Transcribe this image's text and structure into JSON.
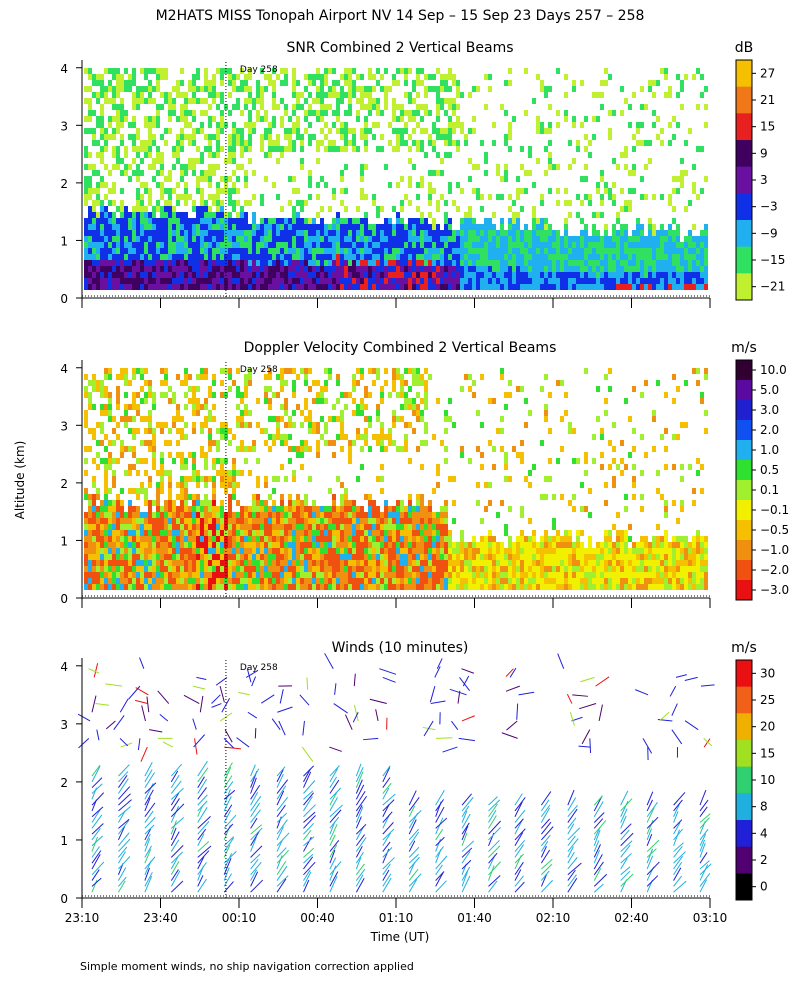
{
  "figure": {
    "title": "M2HATS MISS Tonopah Airport NV  14 Sep – 15 Sep 23 Days 257 – 258",
    "ylabel": "Altitude (km)",
    "xlabel": "Time (UT)",
    "footnote": "Simple moment winds, no ship navigation correction applied",
    "day_marker_label": "Day 258"
  },
  "chart_data": [
    {
      "type": "heatmap",
      "title": "SNR Combined 2 Vertical Beams",
      "xlabel": "Time (UT)",
      "ylabel": "Altitude (km)",
      "x_ticks": [
        "23:10",
        "23:40",
        "00:10",
        "00:40",
        "01:10",
        "01:40",
        "02:10",
        "02:40",
        "03:10"
      ],
      "y_ticks": [
        0,
        1,
        2,
        3,
        4
      ],
      "ylim": [
        0,
        4.1
      ],
      "colorbar_unit": "dB",
      "colorbar_labels": [
        "27",
        "21",
        "15",
        "9",
        "3",
        "−3",
        "−9",
        "−15",
        "−21"
      ],
      "colorbar_colors": [
        "#f5c000",
        "#f07818",
        "#e82020",
        "#400060",
        "#6a10a0",
        "#1030e8",
        "#20b0f0",
        "#30e060",
        "#c0f030"
      ],
      "day_marker_time": "00:05"
    },
    {
      "type": "heatmap",
      "title": "Doppler Velocity Combined 2 Vertical Beams",
      "xlabel": "Time (UT)",
      "ylabel": "Altitude (km)",
      "x_ticks": [
        "23:10",
        "23:40",
        "00:10",
        "00:40",
        "01:10",
        "01:40",
        "02:10",
        "02:40",
        "03:10"
      ],
      "y_ticks": [
        0,
        1,
        2,
        3,
        4
      ],
      "ylim": [
        0,
        4.1
      ],
      "colorbar_unit": "m/s",
      "colorbar_labels": [
        "10.0",
        "5.0",
        "3.0",
        "2.0",
        "1.0",
        "0.5",
        "0.1",
        "−0.1",
        "−0.5",
        "−1.0",
        "−2.0",
        "−3.0"
      ],
      "colorbar_colors": [
        "#300030",
        "#5a0aa0",
        "#2020d0",
        "#1050f0",
        "#20b0f0",
        "#30e030",
        "#a0f030",
        "#f0f000",
        "#f5c000",
        "#f09010",
        "#f05010",
        "#e81010"
      ],
      "day_marker_time": "00:05"
    },
    {
      "type": "scatter",
      "title": "Winds (10 minutes)",
      "xlabel": "Time (UT)",
      "ylabel": "Altitude (km)",
      "x_ticks": [
        "23:10",
        "23:40",
        "00:10",
        "00:40",
        "01:10",
        "01:40",
        "02:10",
        "02:40",
        "03:10"
      ],
      "y_ticks": [
        0,
        1,
        2,
        3,
        4
      ],
      "ylim": [
        0,
        4.1
      ],
      "colorbar_unit": "m/s",
      "colorbar_labels": [
        "30",
        "25",
        "20",
        "15",
        "10",
        "8",
        "4",
        "2",
        "0"
      ],
      "colorbar_colors": [
        "#e81010",
        "#f06018",
        "#f0b000",
        "#a0e020",
        "#30d070",
        "#20b0e0",
        "#2020d8",
        "#500070",
        "#000000"
      ],
      "day_marker_time": "00:05"
    }
  ]
}
